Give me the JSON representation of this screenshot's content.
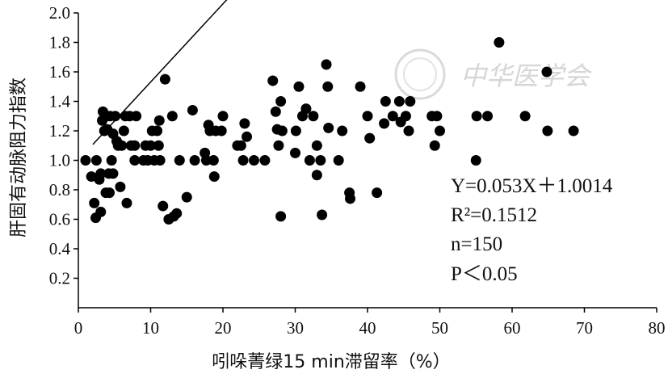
{
  "chart_data": {
    "type": "scatter",
    "title": "",
    "xlabel": "吲哚菁绿15 min滞留率（%）",
    "ylabel": "肝固有动脉阻力指数",
    "xlim": [
      0,
      80
    ],
    "ylim": [
      0,
      2.0
    ],
    "x_ticks": [
      "0",
      "10",
      "20",
      "30",
      "40",
      "50",
      "60",
      "70",
      "80"
    ],
    "y_ticks": [
      "0.2",
      "0.4",
      "0.6",
      "0.8",
      "1.0",
      "1.2",
      "1.4",
      "1.6",
      "1.8",
      "2.0"
    ],
    "grid": false,
    "legend": "none",
    "marker_color": "#000000",
    "trendline": {
      "slope": 0.053,
      "intercept": 1.0014,
      "x_range": [
        2,
        69
      ]
    },
    "annotations": [
      "Y=0.053X＋1.0014",
      "R²=0.1512",
      "n=150",
      "P＜0.05"
    ],
    "watermark": "中华医学会",
    "points": [
      [
        1,
        1.0
      ],
      [
        1.8,
        0.89
      ],
      [
        2.2,
        0.71
      ],
      [
        2.4,
        0.61
      ],
      [
        2.5,
        1.0
      ],
      [
        2.9,
        0.87
      ],
      [
        3.1,
        0.65
      ],
      [
        3.1,
        0.91
      ],
      [
        3.3,
        1.27
      ],
      [
        3.4,
        1.33
      ],
      [
        3.6,
        1.2
      ],
      [
        3.8,
        0.78
      ],
      [
        4.0,
        1.3
      ],
      [
        4.0,
        1.21
      ],
      [
        4.2,
        0.91
      ],
      [
        4.3,
        0.78
      ],
      [
        4.4,
        1.3
      ],
      [
        4.6,
        1.0
      ],
      [
        4.8,
        0.91
      ],
      [
        4.8,
        1.18
      ],
      [
        5.1,
        1.3
      ],
      [
        5.3,
        1.13
      ],
      [
        5.5,
        1.1
      ],
      [
        5.8,
        0.82
      ],
      [
        6.0,
        1.1
      ],
      [
        6.3,
        1.2
      ],
      [
        6.5,
        1.3
      ],
      [
        6.7,
        0.71
      ],
      [
        7.1,
        1.3
      ],
      [
        7.3,
        1.1
      ],
      [
        7.8,
        1.1
      ],
      [
        7.8,
        1.0
      ],
      [
        8.0,
        1.3
      ],
      [
        9.0,
        1.0
      ],
      [
        9.3,
        1.1
      ],
      [
        9.6,
        1.0
      ],
      [
        10.0,
        1.1
      ],
      [
        10.2,
        1.2
      ],
      [
        10.5,
        1.0
      ],
      [
        10.9,
        1.2
      ],
      [
        11.1,
        1.1
      ],
      [
        11.2,
        1.27
      ],
      [
        11.3,
        1.0
      ],
      [
        11.7,
        0.69
      ],
      [
        12.0,
        1.55
      ],
      [
        12.5,
        0.6
      ],
      [
        13.0,
        1.3
      ],
      [
        13.2,
        0.62
      ],
      [
        13.6,
        0.64
      ],
      [
        14.0,
        1.0
      ],
      [
        15.0,
        0.75
      ],
      [
        15.8,
        1.34
      ],
      [
        16.1,
        1.0
      ],
      [
        17.5,
        1.05
      ],
      [
        17.7,
        1.0
      ],
      [
        18.0,
        1.24
      ],
      [
        18.2,
        1.2
      ],
      [
        18.7,
        1.0
      ],
      [
        18.8,
        0.89
      ],
      [
        19.0,
        1.2
      ],
      [
        19.8,
        1.2
      ],
      [
        20.0,
        1.3
      ],
      [
        22.0,
        1.1
      ],
      [
        22.5,
        1.1
      ],
      [
        22.8,
        1.0
      ],
      [
        23.0,
        1.25
      ],
      [
        23.3,
        1.16
      ],
      [
        24.3,
        1.0
      ],
      [
        25.8,
        1.0
      ],
      [
        26.9,
        1.54
      ],
      [
        27.3,
        1.33
      ],
      [
        27.5,
        1.21
      ],
      [
        27.7,
        1.1
      ],
      [
        28.0,
        0.62
      ],
      [
        28.0,
        1.4
      ],
      [
        28.2,
        1.2
      ],
      [
        30.0,
        1.05
      ],
      [
        30.1,
        1.2
      ],
      [
        30.5,
        1.5
      ],
      [
        31.0,
        1.3
      ],
      [
        31.5,
        1.35
      ],
      [
        32.0,
        1.0
      ],
      [
        32.5,
        1.3
      ],
      [
        33.0,
        0.9
      ],
      [
        33.0,
        1.1
      ],
      [
        33.5,
        1.0
      ],
      [
        33.7,
        0.63
      ],
      [
        34.3,
        1.65
      ],
      [
        34.5,
        1.5
      ],
      [
        34.6,
        1.22
      ],
      [
        36.0,
        1.0
      ],
      [
        36.5,
        1.2
      ],
      [
        37.5,
        0.78
      ],
      [
        37.6,
        0.74
      ],
      [
        39.0,
        1.5
      ],
      [
        40.0,
        1.3
      ],
      [
        40.3,
        1.15
      ],
      [
        41.3,
        0.78
      ],
      [
        42.3,
        1.25
      ],
      [
        42.5,
        1.4
      ],
      [
        43.5,
        1.3
      ],
      [
        44.4,
        1.4
      ],
      [
        44.6,
        1.26
      ],
      [
        45.3,
        1.3
      ],
      [
        45.7,
        1.2
      ],
      [
        45.9,
        1.4
      ],
      [
        48.9,
        1.3
      ],
      [
        49.3,
        1.1
      ],
      [
        49.6,
        1.3
      ],
      [
        50.0,
        1.2
      ],
      [
        55.0,
        1.0
      ],
      [
        55.1,
        1.3
      ],
      [
        56.6,
        1.3
      ],
      [
        58.2,
        1.8
      ],
      [
        61.8,
        1.3
      ],
      [
        64.8,
        1.6
      ],
      [
        64.9,
        1.2
      ],
      [
        68.5,
        1.2
      ]
    ]
  }
}
